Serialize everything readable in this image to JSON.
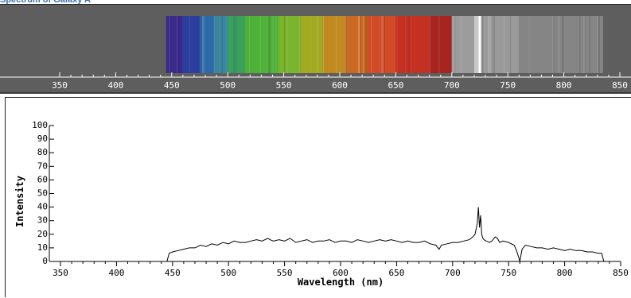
{
  "page": {
    "title": "Spectrum of Galaxy A"
  },
  "colors": {
    "spectrum_panel_bg": "#5e5e5e",
    "plot_line": "#000000",
    "title_color": "#3a6fb0"
  },
  "chart_data": [
    {
      "type": "spectrum-strip",
      "title": "",
      "xlim": [
        350,
        850
      ],
      "x_tick_labels": [
        "350",
        "400",
        "450",
        "500",
        "550",
        "600",
        "650",
        "700",
        "750",
        "800",
        "850"
      ],
      "color_bands": [
        {
          "from": 445,
          "to": 460,
          "color": "#3a2a8a"
        },
        {
          "from": 460,
          "to": 475,
          "color": "#2c3fa0"
        },
        {
          "from": 475,
          "to": 488,
          "color": "#2d68a8"
        },
        {
          "from": 488,
          "to": 500,
          "color": "#3a86a0"
        },
        {
          "from": 500,
          "to": 515,
          "color": "#3aa060"
        },
        {
          "from": 515,
          "to": 545,
          "color": "#4db038"
        },
        {
          "from": 545,
          "to": 565,
          "color": "#7ab52e"
        },
        {
          "from": 565,
          "to": 585,
          "color": "#a2aa22"
        },
        {
          "from": 585,
          "to": 605,
          "color": "#c08a20"
        },
        {
          "from": 605,
          "to": 625,
          "color": "#cc6a22"
        },
        {
          "from": 625,
          "to": 650,
          "color": "#d24a26"
        },
        {
          "from": 650,
          "to": 680,
          "color": "#c43022"
        },
        {
          "from": 680,
          "to": 700,
          "color": "#a82420"
        },
        {
          "from": 700,
          "to": 720,
          "color": "#9c9c9c"
        },
        {
          "from": 720,
          "to": 726,
          "color": "#c8c8c8"
        },
        {
          "from": 726,
          "to": 760,
          "color": "#9a9a9a"
        },
        {
          "from": 760,
          "to": 835,
          "color": "#858585"
        }
      ],
      "bright_line_nm": 725
    },
    {
      "type": "line",
      "title": "",
      "xlabel": "Wavelength (nm)",
      "ylabel": "Intensity",
      "xlim": [
        350,
        850
      ],
      "ylim": [
        0,
        100
      ],
      "x_tick_labels": [
        "350",
        "400",
        "450",
        "500",
        "550",
        "600",
        "650",
        "700",
        "750",
        "800",
        "850"
      ],
      "y_tick_labels": [
        "0",
        "10",
        "20",
        "30",
        "40",
        "50",
        "60",
        "70",
        "80",
        "90",
        "100"
      ],
      "grid": false,
      "series": [
        {
          "x": [
            445,
            447,
            450,
            455,
            460,
            465,
            470,
            475,
            480,
            485,
            490,
            495,
            500,
            505,
            510,
            515,
            520,
            525,
            530,
            535,
            537,
            540,
            545,
            550,
            555,
            560,
            565,
            570,
            575,
            580,
            585,
            590,
            595,
            600,
            605,
            610,
            615,
            620,
            625,
            630,
            635,
            640,
            645,
            650,
            655,
            660,
            665,
            670,
            675,
            680,
            685,
            688,
            690,
            695,
            700,
            705,
            710,
            715,
            718,
            720,
            722,
            723,
            724,
            725,
            726,
            727,
            728,
            730,
            733,
            735,
            738,
            740,
            742,
            745,
            750,
            755,
            757,
            759,
            760,
            762,
            765,
            770,
            775,
            780,
            785,
            790,
            795,
            800,
            805,
            810,
            815,
            820,
            825,
            830,
            833,
            835
          ],
          "y": [
            0,
            6,
            7,
            8,
            9,
            10,
            10,
            12,
            11,
            13,
            12,
            14,
            13,
            15,
            14,
            14,
            15,
            16,
            15,
            17,
            16,
            15,
            16,
            15,
            17,
            14,
            15,
            16,
            14,
            15,
            15,
            16,
            14,
            15,
            15,
            14,
            16,
            15,
            14,
            15,
            16,
            15,
            16,
            15,
            14,
            15,
            14,
            14,
            15,
            13,
            12,
            9,
            12,
            13,
            14,
            14,
            15,
            16,
            18,
            20,
            28,
            40,
            25,
            34,
            20,
            17,
            16,
            15,
            14,
            15,
            18,
            17,
            14,
            15,
            14,
            12,
            8,
            3,
            0,
            9,
            12,
            11,
            10,
            10,
            9,
            10,
            9,
            8,
            9,
            8,
            8,
            7,
            7,
            6,
            6,
            0
          ]
        }
      ]
    }
  ]
}
